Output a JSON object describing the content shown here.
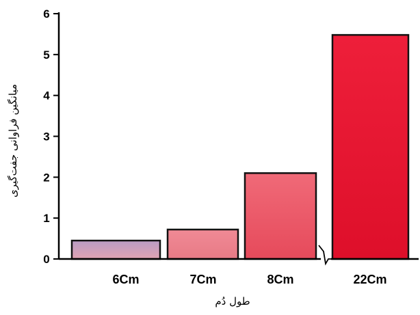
{
  "chart_data": {
    "type": "bar",
    "categories": [
      "6Cm",
      "7Cm",
      "8Cm",
      "22Cm"
    ],
    "values": [
      0.45,
      0.72,
      2.1,
      5.48
    ],
    "xlabel": "طول دُم",
    "ylabel": "میانگین فراوانی جفت‌گیری",
    "ylim": [
      0,
      6
    ],
    "yticks": [
      "0",
      "1",
      "2",
      "3",
      "4",
      "5",
      "6"
    ],
    "axis_break": "between 8Cm and 22Cm",
    "grid": false,
    "legend": "none",
    "colors": [
      "#cf9fb4",
      "#ee7b88",
      "#ec5766",
      "#e8132f"
    ]
  }
}
